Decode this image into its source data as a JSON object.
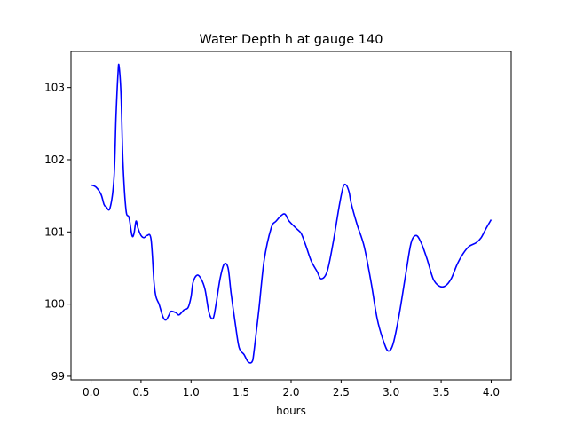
{
  "chart_data": {
    "type": "line",
    "title": "Water Depth h at gauge 140",
    "xlabel": "hours",
    "ylabel": "",
    "xlim": [
      -0.2,
      4.2
    ],
    "ylim": [
      98.95,
      103.5
    ],
    "xticks": [
      0.0,
      0.5,
      1.0,
      1.5,
      2.0,
      2.5,
      3.0,
      3.5,
      4.0
    ],
    "xtick_labels": [
      "0.0",
      "0.5",
      "1.0",
      "1.5",
      "2.0",
      "2.5",
      "3.0",
      "3.5",
      "4.0"
    ],
    "yticks": [
      99,
      100,
      101,
      102,
      103
    ],
    "ytick_labels": [
      "99",
      "100",
      "101",
      "102",
      "103"
    ],
    "grid": false,
    "series": [
      {
        "color": "#0000ff",
        "x": [
          0.0,
          0.05,
          0.1,
          0.13,
          0.15,
          0.19,
          0.23,
          0.25,
          0.27,
          0.28,
          0.3,
          0.32,
          0.35,
          0.38,
          0.41,
          0.43,
          0.45,
          0.47,
          0.5,
          0.53,
          0.56,
          0.6,
          0.63,
          0.65,
          0.68,
          0.72,
          0.75,
          0.78,
          0.8,
          0.85,
          0.88,
          0.93,
          0.97,
          1.0,
          1.02,
          1.06,
          1.1,
          1.14,
          1.18,
          1.22,
          1.25,
          1.29,
          1.33,
          1.37,
          1.4,
          1.44,
          1.48,
          1.53,
          1.57,
          1.61,
          1.63,
          1.68,
          1.73,
          1.8,
          1.85,
          1.93,
          1.98,
          2.05,
          2.1,
          2.15,
          2.2,
          2.26,
          2.3,
          2.36,
          2.42,
          2.48,
          2.52,
          2.55,
          2.58,
          2.6,
          2.66,
          2.73,
          2.8,
          2.86,
          2.92,
          2.97,
          3.02,
          3.08,
          3.15,
          3.2,
          3.25,
          3.3,
          3.36,
          3.42,
          3.48,
          3.54,
          3.6,
          3.66,
          3.72,
          3.78,
          3.85,
          3.9,
          3.95,
          4.0
        ],
        "y": [
          101.65,
          101.62,
          101.52,
          101.38,
          101.35,
          101.33,
          101.75,
          102.6,
          103.2,
          103.3,
          102.9,
          101.95,
          101.3,
          101.2,
          100.95,
          100.98,
          101.15,
          101.05,
          100.95,
          100.92,
          100.95,
          100.9,
          100.3,
          100.1,
          100.0,
          99.82,
          99.78,
          99.85,
          99.9,
          99.88,
          99.85,
          99.92,
          99.95,
          100.1,
          100.3,
          100.4,
          100.35,
          100.2,
          99.88,
          99.8,
          100.0,
          100.35,
          100.55,
          100.5,
          100.15,
          99.75,
          99.4,
          99.3,
          99.2,
          99.2,
          99.35,
          99.95,
          100.6,
          101.05,
          101.15,
          101.25,
          101.15,
          101.05,
          100.98,
          100.8,
          100.6,
          100.45,
          100.35,
          100.45,
          100.85,
          101.35,
          101.62,
          101.65,
          101.55,
          101.4,
          101.1,
          100.8,
          100.3,
          99.8,
          99.5,
          99.35,
          99.45,
          99.85,
          100.45,
          100.85,
          100.95,
          100.85,
          100.62,
          100.35,
          100.25,
          100.25,
          100.35,
          100.55,
          100.7,
          100.8,
          100.85,
          100.92,
          101.05,
          101.17
        ]
      }
    ]
  }
}
